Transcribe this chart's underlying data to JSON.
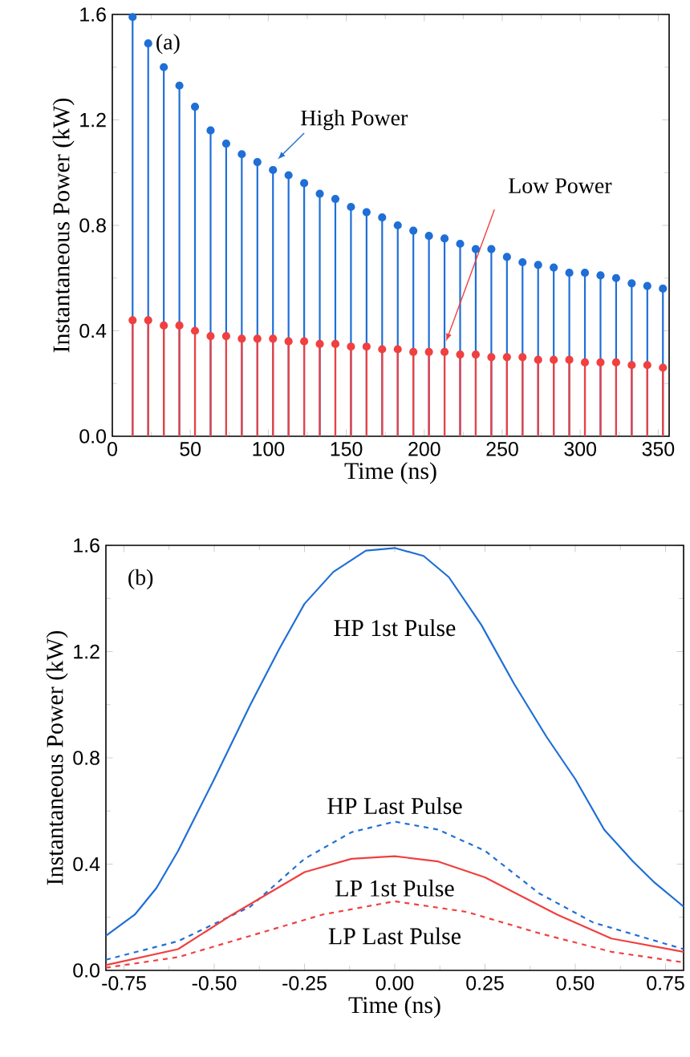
{
  "chart_data": [
    {
      "type": "lollipop",
      "xlabel": "Time (ns)",
      "ylabel": "Instantaneous Power (kW)",
      "annotations": [
        "(a)"
      ],
      "marker": "circle",
      "xlim": [
        0,
        357
      ],
      "ylim": [
        0,
        1.6
      ],
      "xticks": [
        0,
        50,
        100,
        150,
        200,
        250,
        300,
        350
      ],
      "yticks": [
        {
          "value": 0,
          "label": "0.0"
        },
        {
          "value": 0.4,
          "label": "0.4"
        },
        {
          "value": 0.8,
          "label": "0.8"
        },
        {
          "value": 1.2,
          "label": "1.2"
        },
        {
          "value": 1.6,
          "label": "1.6"
        }
      ],
      "x": [
        13,
        23,
        33,
        43,
        53,
        63,
        73,
        83,
        93,
        103,
        113,
        123,
        133,
        143,
        153,
        163,
        173,
        183,
        193,
        203,
        213,
        223,
        233,
        243,
        253,
        263,
        273,
        283,
        293,
        303,
        313,
        323,
        333,
        343,
        353
      ],
      "series": [
        {
          "name": "High Power",
          "color": "#1f6fd6",
          "values": [
            1.59,
            1.49,
            1.4,
            1.33,
            1.25,
            1.16,
            1.11,
            1.07,
            1.04,
            1.01,
            0.99,
            0.96,
            0.92,
            0.9,
            0.87,
            0.85,
            0.83,
            0.8,
            0.78,
            0.76,
            0.75,
            0.73,
            0.71,
            0.71,
            0.68,
            0.66,
            0.65,
            0.64,
            0.62,
            0.62,
            0.61,
            0.6,
            0.58,
            0.57,
            0.56
          ]
        },
        {
          "name": "Low Power",
          "color": "#f04040",
          "values": [
            0.44,
            0.44,
            0.42,
            0.42,
            0.4,
            0.38,
            0.38,
            0.37,
            0.37,
            0.37,
            0.36,
            0.36,
            0.35,
            0.35,
            0.34,
            0.34,
            0.33,
            0.33,
            0.32,
            0.32,
            0.32,
            0.31,
            0.31,
            0.3,
            0.3,
            0.3,
            0.29,
            0.29,
            0.29,
            0.28,
            0.28,
            0.28,
            0.27,
            0.27,
            0.26
          ]
        }
      ]
    },
    {
      "type": "line",
      "xlabel": "Time (ns)",
      "ylabel": "Instantaneous Power (kW)",
      "annotations": [
        "(b)"
      ],
      "xlim": [
        -0.8,
        0.8
      ],
      "ylim": [
        0,
        1.6
      ],
      "xticks": [
        {
          "value": -0.75,
          "label": "-0.75"
        },
        {
          "value": -0.5,
          "label": "-0.50"
        },
        {
          "value": -0.25,
          "label": "-0.25"
        },
        {
          "value": 0,
          "label": "0.00"
        },
        {
          "value": 0.25,
          "label": "0.25"
        },
        {
          "value": 0.5,
          "label": "0.50"
        },
        {
          "value": 0.75,
          "label": "0.75"
        }
      ],
      "yticks": [
        {
          "value": 0,
          "label": "0.0"
        },
        {
          "value": 0.4,
          "label": "0.4"
        },
        {
          "value": 0.8,
          "label": "0.8"
        },
        {
          "value": 1.2,
          "label": "1.2"
        },
        {
          "value": 1.6,
          "label": "1.6"
        }
      ],
      "series": [
        {
          "name": "HP 1st Pulse",
          "color": "#1f6fd6",
          "line_style": "solid",
          "x": [
            -0.8,
            -0.72,
            -0.66,
            -0.6,
            -0.5,
            -0.4,
            -0.32,
            -0.25,
            -0.17,
            -0.08,
            0,
            0.08,
            0.15,
            0.24,
            0.33,
            0.42,
            0.5,
            0.58,
            0.66,
            0.72,
            0.8
          ],
          "values": [
            0.13,
            0.21,
            0.31,
            0.45,
            0.72,
            1.0,
            1.21,
            1.38,
            1.5,
            1.58,
            1.59,
            1.56,
            1.48,
            1.3,
            1.08,
            0.88,
            0.72,
            0.53,
            0.41,
            0.33,
            0.24
          ]
        },
        {
          "name": "HP Last Pulse",
          "color": "#1f6fd6",
          "line_style": "dashed",
          "x": [
            -0.8,
            -0.6,
            -0.4,
            -0.25,
            -0.12,
            0,
            0.12,
            0.25,
            0.4,
            0.55,
            0.8
          ],
          "values": [
            0.04,
            0.11,
            0.24,
            0.42,
            0.52,
            0.56,
            0.53,
            0.45,
            0.29,
            0.18,
            0.08
          ]
        },
        {
          "name": "LP 1st Pulse",
          "color": "#f04040",
          "line_style": "solid",
          "x": [
            -0.8,
            -0.6,
            -0.45,
            -0.25,
            -0.12,
            0,
            0.12,
            0.25,
            0.45,
            0.6,
            0.8
          ],
          "values": [
            0.02,
            0.08,
            0.21,
            0.37,
            0.42,
            0.43,
            0.41,
            0.35,
            0.21,
            0.12,
            0.07
          ]
        },
        {
          "name": "LP Last Pulse",
          "color": "#f04040",
          "line_style": "dashed",
          "x": [
            -0.8,
            -0.6,
            -0.4,
            -0.2,
            0,
            0.2,
            0.4,
            0.6,
            0.8
          ],
          "values": [
            0.01,
            0.05,
            0.13,
            0.21,
            0.26,
            0.22,
            0.14,
            0.07,
            0.03
          ]
        }
      ]
    }
  ]
}
